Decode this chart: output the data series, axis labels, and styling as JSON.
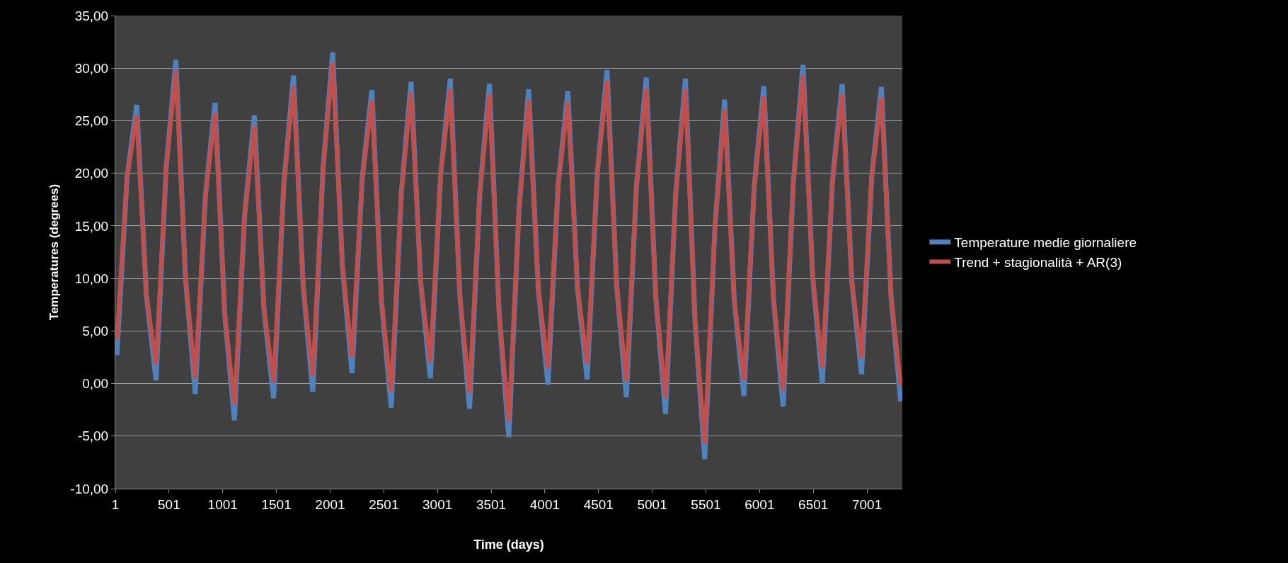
{
  "chart_data": {
    "type": "line",
    "xlabel": "Time (days)",
    "ylabel": "Temperatures (degrees)",
    "x": [
      15,
      110,
      200,
      290,
      380,
      475,
      565,
      655,
      745,
      840,
      930,
      1020,
      1110,
      1205,
      1295,
      1385,
      1475,
      1570,
      1660,
      1750,
      1840,
      1935,
      2025,
      2115,
      2205,
      2300,
      2390,
      2480,
      2570,
      2665,
      2755,
      2845,
      2935,
      3030,
      3120,
      3210,
      3300,
      3395,
      3485,
      3575,
      3665,
      3760,
      3850,
      3940,
      4030,
      4125,
      4215,
      4305,
      4395,
      4490,
      4580,
      4670,
      4760,
      4855,
      4945,
      5035,
      5125,
      5220,
      5310,
      5400,
      5490,
      5585,
      5675,
      5765,
      5855,
      5950,
      6040,
      6130,
      6220,
      6315,
      6405,
      6495,
      6585,
      6680,
      6770,
      6860,
      6950,
      7045,
      7135,
      7225,
      7315
    ],
    "series": [
      {
        "name": "Temperature medie giornaliere",
        "color": "#4f81bd",
        "values": [
          2.7,
          19.6,
          26.5,
          8.4,
          0.3,
          20.6,
          30.8,
          9.9,
          -1,
          17.9,
          26.7,
          6.6,
          -3.5,
          16,
          25.5,
          7.1,
          -1.4,
          19,
          29.3,
          9.3,
          -0.8,
          20.4,
          31.5,
          11.3,
          1,
          19.5,
          27.9,
          7.8,
          -2.3,
          18.2,
          28.7,
          9.6,
          0.5,
          19.8,
          29,
          8.3,
          -2.4,
          18.1,
          28.5,
          6.7,
          -5.1,
          16.5,
          28,
          9,
          -0.1,
          18.9,
          27.8,
          9.1,
          0.4,
          20.1,
          29.8,
          9.3,
          -1.3,
          18.9,
          29.1,
          8.1,
          -2.9,
          18.1,
          29,
          5.9,
          -7.2,
          14.9,
          27,
          7.9,
          -1.2,
          18.6,
          28.3,
          8.1,
          -2.2,
          19.1,
          30.3,
          10.2,
          0,
          19.3,
          28.5,
          9.7,
          0.9,
          19.6,
          28.2,
          8.3,
          -1.7
        ]
      },
      {
        "name": "Trend + stagionalità + AR(3)",
        "color": "#c0504d",
        "values": [
          4.2,
          19.6,
          25.5,
          8.4,
          1.8,
          20.6,
          29.8,
          9.9,
          0.5,
          17.9,
          25.7,
          6.6,
          -2,
          16,
          24.5,
          7.1,
          0.1,
          19,
          28.3,
          9.3,
          0.7,
          20.4,
          30.5,
          11.3,
          2.5,
          19.5,
          26.9,
          7.8,
          -0.8,
          18.2,
          27.7,
          9.6,
          2,
          19.8,
          28,
          8.3,
          -0.9,
          18.1,
          27.5,
          6.7,
          -3.6,
          16.5,
          27,
          9,
          1.4,
          18.9,
          26.8,
          9.1,
          1.9,
          20.1,
          28.8,
          9.3,
          0.2,
          18.9,
          28.1,
          8.1,
          -1.4,
          18.1,
          28,
          5.9,
          -5.7,
          14.9,
          26,
          7.9,
          0.3,
          18.6,
          27.3,
          8.1,
          -0.7,
          19.1,
          29.3,
          10.2,
          1.5,
          19.3,
          27.5,
          9.7,
          2.4,
          19.6,
          27.2,
          8.3,
          -0.2
        ]
      }
    ],
    "xlim": [
      1,
      7330
    ],
    "xticks": [
      1,
      501,
      1001,
      1501,
      2001,
      2501,
      3001,
      3501,
      4001,
      4501,
      5001,
      5501,
      6001,
      6501,
      7001
    ],
    "ylim": [
      -10,
      35
    ],
    "yticks": [
      {
        "value": -10,
        "label": "-10,00"
      },
      {
        "value": -5,
        "label": "-5,00"
      },
      {
        "value": 0,
        "label": "0,00"
      },
      {
        "value": 5,
        "label": "5,00"
      },
      {
        "value": 10,
        "label": "10,00"
      },
      {
        "value": 15,
        "label": "15,00"
      },
      {
        "value": 20,
        "label": "20,00"
      },
      {
        "value": 25,
        "label": "25,00"
      },
      {
        "value": 30,
        "label": "30,00"
      },
      {
        "value": 35,
        "label": "35,00"
      }
    ],
    "grid": "y",
    "legend": "right",
    "marker": "none",
    "line_style": "solid"
  }
}
